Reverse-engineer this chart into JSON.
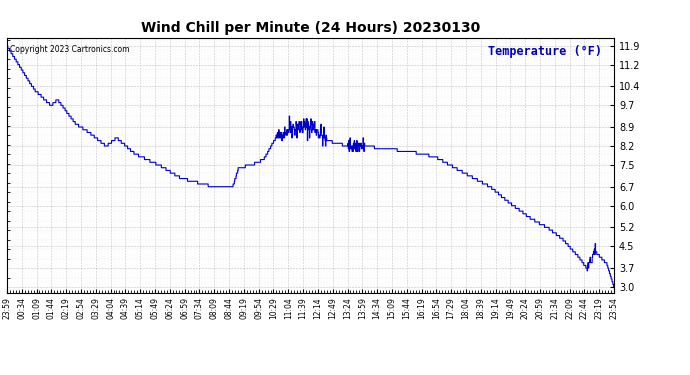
{
  "title": "Wind Chill per Minute (24 Hours) 20230130",
  "copyright": "Copyright 2023 Cartronics.com",
  "ylabel": "Temperature (°F)",
  "line_color": "#0000CC",
  "ylabel_color": "#0000BB",
  "background_color": "#ffffff",
  "plot_bg_color": "#ffffff",
  "grid_color": "#999999",
  "ylim": [
    2.8,
    12.2
  ],
  "yticks": [
    3.0,
    3.7,
    4.5,
    5.2,
    6.0,
    6.7,
    7.5,
    8.2,
    8.9,
    9.7,
    10.4,
    11.2,
    11.9
  ],
  "xtick_labels": [
    "23:59",
    "00:34",
    "01:09",
    "01:44",
    "02:19",
    "02:54",
    "03:29",
    "04:04",
    "04:39",
    "05:14",
    "05:49",
    "06:24",
    "06:59",
    "07:34",
    "08:09",
    "08:44",
    "09:19",
    "09:54",
    "10:29",
    "11:04",
    "11:39",
    "12:14",
    "12:49",
    "13:24",
    "13:59",
    "14:34",
    "15:09",
    "15:44",
    "16:19",
    "16:54",
    "17:29",
    "18:04",
    "18:39",
    "19:14",
    "19:49",
    "20:24",
    "20:59",
    "21:34",
    "22:09",
    "22:44",
    "23:19",
    "23:54"
  ]
}
